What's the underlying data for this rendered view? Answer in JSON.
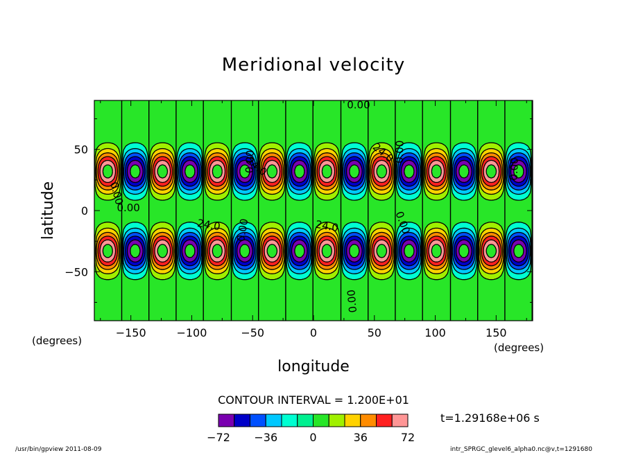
{
  "chart_data": {
    "type": "heatmap",
    "plot_kind": "filled contour map",
    "title": "Meridional velocity",
    "xlabel": "longitude",
    "ylabel": "latitude",
    "x_unit": "(degrees)",
    "y_unit": "(degrees)",
    "xlim": [
      -180,
      180
    ],
    "ylim": [
      -90,
      90
    ],
    "x_ticks": [
      -150,
      -100,
      -50,
      0,
      50,
      100,
      150
    ],
    "y_ticks": [
      50,
      0,
      -50
    ],
    "contour_interval_text": "CONTOUR INTERVAL = 1.200E+01",
    "contour_interval": 12,
    "contour_line_labels": [
      "0.00",
      "24.0"
    ],
    "field_model": {
      "zonal_wavenumber": 8,
      "crest_lon_north": 11,
      "north_center_lat": 32,
      "south_center_lat": -33,
      "amplitude": 80,
      "south_phase_shift_deg": 22.5
    },
    "colorbar": {
      "levels": [
        -72,
        -60,
        -48,
        -36,
        -24,
        -12,
        0,
        12,
        24,
        36,
        48,
        60,
        72
      ],
      "tick_labels": [
        "-72",
        "-36",
        "0",
        "36",
        "72"
      ],
      "tick_values": [
        -72,
        -36,
        0,
        36,
        72
      ],
      "colors": [
        "#7a00b0",
        "#0000c8",
        "#0050ff",
        "#00c8ff",
        "#00ffd2",
        "#00f090",
        "#28e628",
        "#a0f000",
        "#ffd200",
        "#ff8c00",
        "#ff2020",
        "#ff9696"
      ]
    }
  },
  "time_label": "t=1.29168e+06 s",
  "footer_left": "/usr/bin/gpview  2011-08-09",
  "footer_right": "intr_SPRGC_glevel6_alpha0.nc@v,t=1291680"
}
